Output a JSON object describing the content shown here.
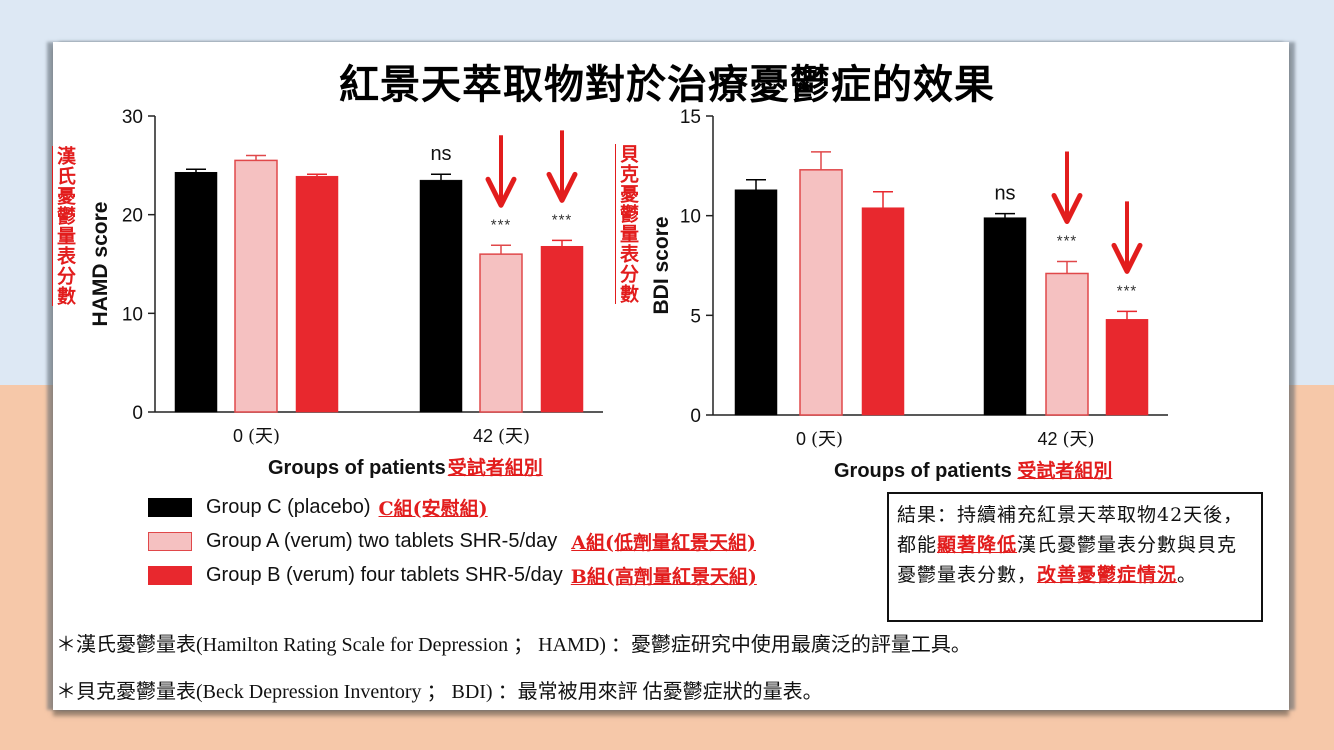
{
  "title": "紅景天萃取物對於治療憂鬱症的效果",
  "colors": {
    "group_c": "#000000",
    "group_a": "#f5c1c1",
    "group_a_edge": "#e0484a",
    "group_b": "#e8282e",
    "annotation_red": "#e21d1d",
    "bg_top": "#dde8f4",
    "bg_bottom": "#f6c8a9"
  },
  "chart_data": [
    {
      "type": "bar",
      "title": "",
      "ylabel": "HAMD score",
      "ylabel_cn": "漢氏憂鬱量表分數",
      "xlabel": "Groups of patients",
      "xlabel_cn": "受試者組別",
      "ylim": [
        0,
        30
      ],
      "yticks": [
        "0",
        "10",
        "20",
        "30"
      ],
      "ytick_values": [
        0,
        10,
        20,
        30
      ],
      "categories": [
        "0 (天)",
        "42 (天)"
      ],
      "category_values": [
        "0",
        "42"
      ],
      "category_unit": "(天)",
      "series": [
        {
          "name": "Group C (placebo)",
          "values": [
            24.3,
            23.5
          ],
          "errors": [
            0.3,
            0.6
          ]
        },
        {
          "name": "Group A (verum) two tablets SHR-5/day",
          "values": [
            25.5,
            16.0
          ],
          "errors": [
            0.5,
            0.9
          ]
        },
        {
          "name": "Group B (verum) four tablets SHR-5/day",
          "values": [
            23.9,
            16.8
          ],
          "errors": [
            0.2,
            0.6
          ]
        }
      ],
      "annotations": [
        {
          "category": 1,
          "series": 0,
          "text": "ns"
        },
        {
          "category": 1,
          "series": 1,
          "text": "***",
          "arrow": true
        },
        {
          "category": 1,
          "series": 2,
          "text": "***",
          "arrow": true
        }
      ],
      "grid": false
    },
    {
      "type": "bar",
      "title": "",
      "ylabel": "BDI score",
      "ylabel_cn": "貝克憂鬱量表分數",
      "xlabel": "Groups of patients",
      "xlabel_cn": "受試者組別",
      "ylim": [
        0,
        15
      ],
      "yticks": [
        "0",
        "5",
        "10",
        "15"
      ],
      "ytick_values": [
        0,
        5,
        10,
        15
      ],
      "categories": [
        "0 (天)",
        "42 (天)"
      ],
      "category_values": [
        "0",
        "42"
      ],
      "category_unit": "(天)",
      "series": [
        {
          "name": "Group C (placebo)",
          "values": [
            11.3,
            9.9
          ],
          "errors": [
            0.5,
            0.2
          ]
        },
        {
          "name": "Group A (verum) two tablets SHR-5/day",
          "values": [
            12.3,
            7.1
          ],
          "errors": [
            0.9,
            0.6
          ]
        },
        {
          "name": "Group B (verum) four tablets SHR-5/day",
          "values": [
            10.4,
            4.8
          ],
          "errors": [
            0.8,
            0.4
          ]
        }
      ],
      "annotations": [
        {
          "category": 1,
          "series": 0,
          "text": "ns"
        },
        {
          "category": 1,
          "series": 1,
          "text": "***",
          "arrow": true
        },
        {
          "category": 1,
          "series": 2,
          "text": "***",
          "arrow": true
        }
      ],
      "grid": false
    }
  ],
  "legend": [
    {
      "label": "Group C (placebo)",
      "cn": "C組(安慰組)"
    },
    {
      "label": "Group A (verum) two tablets SHR-5/day",
      "cn": "A組(低劑量紅景天組)"
    },
    {
      "label": "Group B (verum) four tablets SHR-5/day",
      "cn": "B組(高劑量紅景天組)"
    }
  ],
  "result_box": {
    "part1": "結果：持續補充紅景天萃取物42天後，都能",
    "highlight1": "顯著降低",
    "part2": "漢氏憂鬱量表分數與貝克憂鬱量表分數，",
    "highlight2": "改善憂鬱症情況",
    "part3": "。"
  },
  "notes": [
    "＊漢氏憂鬱量表(Hamilton Rating Scale for Depression ； HAMD) ：憂鬱症研究中使用最廣泛的評量工具。",
    "＊貝克憂鬱量表(Beck Depression Inventory ； BDI) ：最常被用來評 估憂鬱症狀的量表。"
  ]
}
